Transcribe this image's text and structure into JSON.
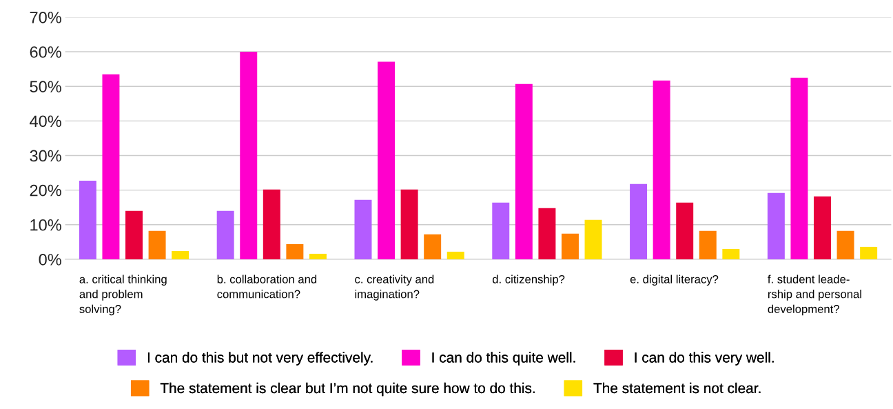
{
  "chart_data": {
    "type": "bar",
    "categories": [
      "a. critical thinking\nand problem\nsolving?",
      "b. collaboration and\ncommunication?",
      "c. creativity and\nimagination?",
      "d. citizenship?",
      "e. digital literacy?",
      "f. student leade-\nrship and personal\ndevelopment?"
    ],
    "series": [
      {
        "name": "I can do this but not very effectively.",
        "color": "#b45cff",
        "values": [
          22.7,
          14.0,
          17.2,
          16.4,
          21.8,
          19.2
        ]
      },
      {
        "name": "I can do this quite well.",
        "color": "#ff00cc",
        "values": [
          53.5,
          60.0,
          57.1,
          50.7,
          51.7,
          52.5
        ]
      },
      {
        "name": "I can do this very well.",
        "color": "#e8003c",
        "values": [
          14.0,
          20.2,
          20.2,
          14.8,
          16.4,
          18.2
        ]
      },
      {
        "name": "The statement is clear but I’m not quite sure how to do this.",
        "color": "#ff8000",
        "values": [
          8.2,
          4.4,
          7.2,
          7.4,
          8.2,
          8.2
        ]
      },
      {
        "name": "The statement is not clear.",
        "color": "#ffe000",
        "values": [
          2.4,
          1.6,
          2.2,
          11.4,
          3.0,
          3.6
        ]
      }
    ],
    "ylim": [
      0,
      70
    ],
    "yticks": [
      {
        "value": 0,
        "label": "0%"
      },
      {
        "value": 10,
        "label": "10%"
      },
      {
        "value": 20,
        "label": "20%"
      },
      {
        "value": 30,
        "label": "30%"
      },
      {
        "value": 40,
        "label": "40%"
      },
      {
        "value": 50,
        "label": "50%"
      },
      {
        "value": 60,
        "label": "60%"
      },
      {
        "value": 70,
        "label": "70%"
      }
    ],
    "grid": "y",
    "legend": "bottom"
  }
}
